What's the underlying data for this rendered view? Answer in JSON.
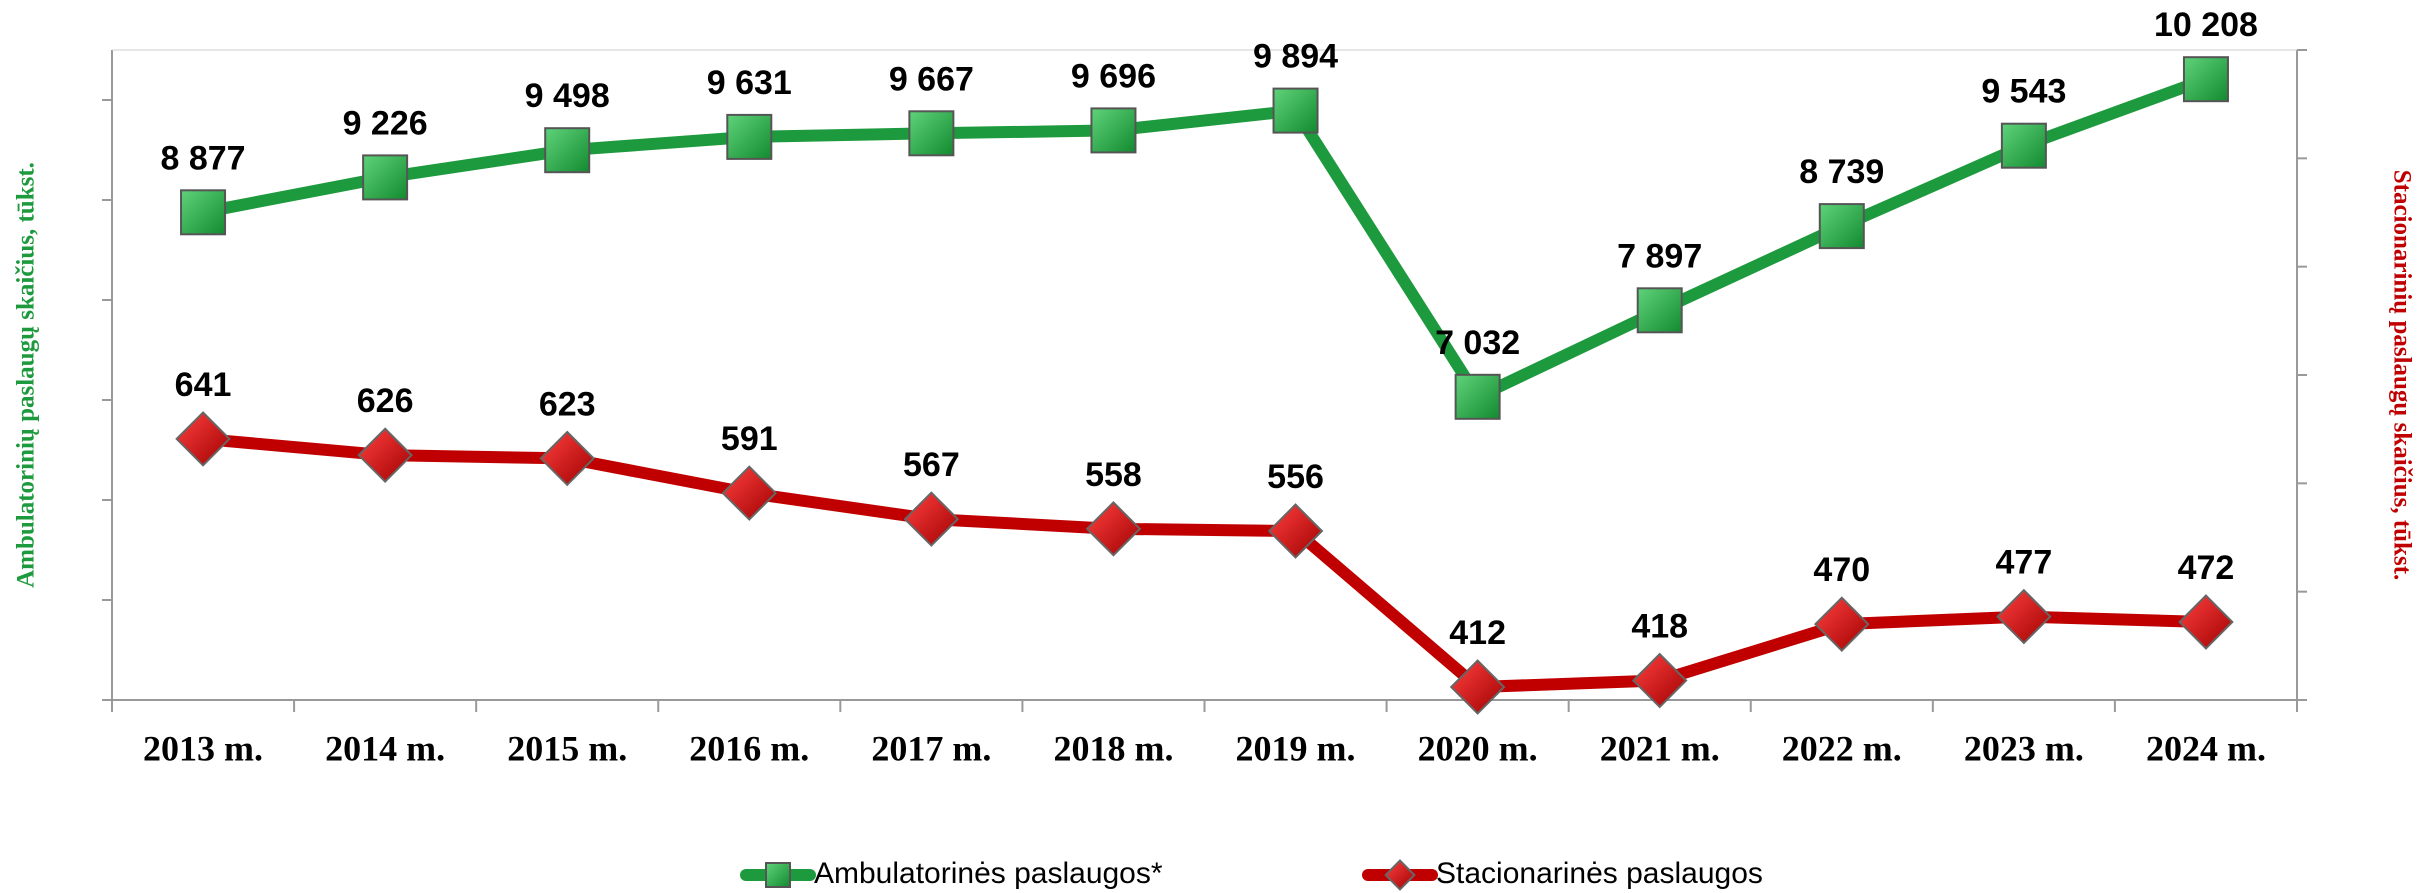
{
  "chart_data": {
    "type": "line",
    "categories": [
      "2013 m.",
      "2014 m.",
      "2015 m.",
      "2016 m.",
      "2017 m.",
      "2018 m.",
      "2019 m.",
      "2020 m.",
      "2021 m.",
      "2022 m.",
      "2023 m.",
      "2024 m."
    ],
    "y_label": "Ambulatorinių paslaugų skaičius, tūkst.",
    "y2_label": "Stacionarinių paslaugų skaičius, tūkst.",
    "ylim": [
      4000,
      10500
    ],
    "yticks": [
      4000,
      5000,
      6000,
      7000,
      8000,
      9000,
      10000
    ],
    "y2lim": [
      400,
      1000
    ],
    "y2ticks": [
      400,
      500,
      600,
      700,
      800,
      900,
      1000
    ],
    "series": [
      {
        "name": "Ambulatorinės paslaugos*",
        "color": "#1e9a3e",
        "marker": "square",
        "values": [
          8877,
          9226,
          9498,
          9631,
          9667,
          9696,
          9894,
          7032,
          7897,
          8739,
          9543,
          10208
        ],
        "value_labels": [
          "8 877",
          "9 226",
          "9 498",
          "9 631",
          "9 667",
          "9 696",
          "9 894",
          "7 032",
          "7 897",
          "8 739",
          "9 543",
          "10 208"
        ]
      },
      {
        "name": "Stacionarinės paslaugos",
        "color": "#c00000",
        "marker": "diamond",
        "axis": "y2",
        "values": [
          641,
          626,
          623,
          591,
          567,
          558,
          556,
          412,
          418,
          470,
          477,
          472
        ]
      }
    ]
  }
}
